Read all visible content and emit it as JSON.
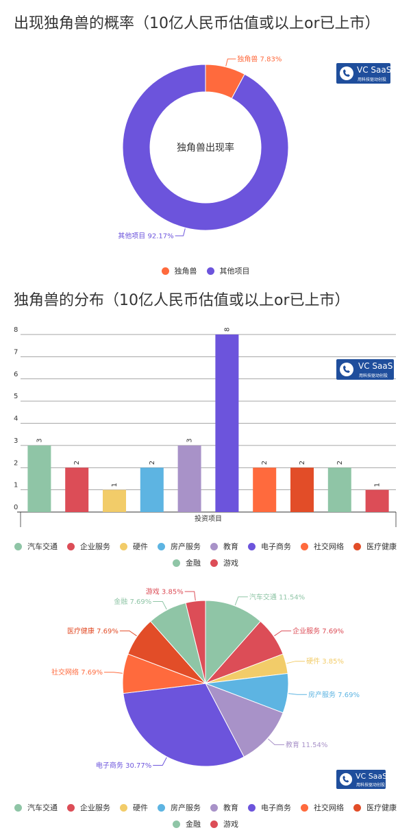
{
  "logo": {
    "brand": "VC SaaS",
    "tagline": "用科技驱动创投"
  },
  "donut": {
    "title": "出现独角兽的概率（10亿人民币估值或以上or已上市）",
    "center_label": "独角兽出现率",
    "colors": [
      "#ff6a3d",
      "#6c54dc"
    ],
    "legend": [
      "独角兽",
      "其他项目"
    ],
    "slice_labels": [
      "独角兽 7.83%",
      "其他项目 92.17%"
    ]
  },
  "bar": {
    "title": "独角兽的分布（10亿人民币估值或以上or已上市）",
    "xlabel": "投资项目",
    "colors": [
      "#8fc5a6",
      "#dc4d57",
      "#f2cc69",
      "#5db4e2",
      "#a892c8",
      "#6c54dc",
      "#ff6a3d",
      "#e24d28",
      "#8fc5a6",
      "#dc4d57"
    ],
    "legend": [
      "汽车交通",
      "企业服务",
      "硬件",
      "房产服务",
      "教育",
      "电子商务",
      "社交网络",
      "医疗健康",
      "金融",
      "游戏"
    ]
  },
  "pie": {
    "colors": [
      "#8fc5a6",
      "#dc4d57",
      "#f2cc69",
      "#5db4e2",
      "#a892c8",
      "#6c54dc",
      "#ff6a3d",
      "#e24d28",
      "#8fc5a6",
      "#dc4d57"
    ],
    "legend": [
      "汽车交通",
      "企业服务",
      "硬件",
      "房产服务",
      "教育",
      "电子商务",
      "社交网络",
      "医疗健康",
      "金融",
      "游戏"
    ],
    "slice_labels": [
      "汽车交通 11.54%",
      "企业服务 7.69%",
      "硬件 3.85%",
      "房产服务 7.69%",
      "教育 11.54%",
      "电子商务 30.77%",
      "社交网络 7.69%",
      "医疗健康 7.69%",
      "金融 7.69%",
      "游戏 3.85%"
    ]
  },
  "chart_data": [
    {
      "type": "pie",
      "title": "出现独角兽的概率（10亿人民币估值或以上or已上市）",
      "categories": [
        "独角兽",
        "其他项目"
      ],
      "values": [
        7.83,
        92.17
      ],
      "center_label": "独角兽出现率",
      "legend": "bottom-center"
    },
    {
      "type": "bar",
      "title": "独角兽的分布（10亿人民币估值或以上or已上市）",
      "categories": [
        "汽车交通",
        "企业服务",
        "硬件",
        "房产服务",
        "教育",
        "电子商务",
        "社交网络",
        "医疗健康",
        "金融",
        "游戏"
      ],
      "values": [
        3,
        2,
        1,
        2,
        3,
        8,
        2,
        2,
        2,
        1
      ],
      "xlabel": "投资项目",
      "ylabel": "",
      "ylim": [
        0,
        8
      ],
      "yticks": [
        0,
        1,
        2,
        3,
        4,
        5,
        6,
        7,
        8
      ],
      "grid": true,
      "legend": "bottom-center"
    },
    {
      "type": "pie",
      "title": "",
      "categories": [
        "汽车交通",
        "企业服务",
        "硬件",
        "房产服务",
        "教育",
        "电子商务",
        "社交网络",
        "医疗健康",
        "金融",
        "游戏"
      ],
      "values": [
        11.54,
        7.69,
        3.85,
        7.69,
        11.54,
        30.77,
        7.69,
        7.69,
        7.69,
        3.85
      ],
      "legend": "bottom-center"
    }
  ]
}
